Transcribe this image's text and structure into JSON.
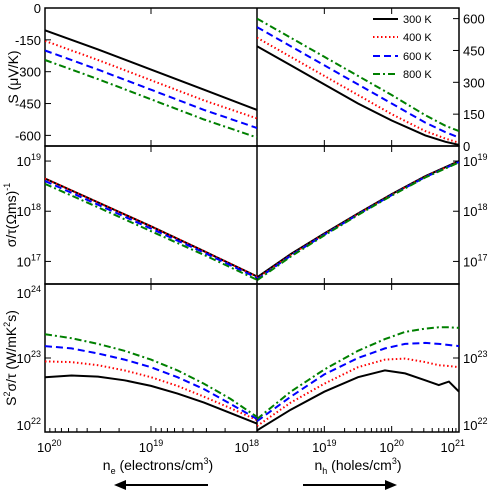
{
  "chart_data": {
    "type": "line",
    "series_styles": [
      {
        "name": "300 K",
        "color": "#000000",
        "dash": "solid"
      },
      {
        "name": "400 K",
        "color": "#ff0000",
        "dash": "dotted"
      },
      {
        "name": "600 K",
        "color": "#0000ff",
        "dash": "dashed"
      },
      {
        "name": "800 K",
        "color": "#008000",
        "dash": "dashdot"
      }
    ],
    "legend": {
      "placement": "top-right of top-right panel",
      "entries": [
        "300 K",
        "400 K",
        "600 K",
        "800 K"
      ]
    },
    "x_axes": {
      "left": {
        "label": "n",
        "label_sub": "e",
        "label_rest": " (electrons/cm",
        "label_sup": "3",
        "label_end": ")",
        "scale": "log",
        "reversed": true,
        "range": [
          "1e20",
          "1e18"
        ],
        "ticks": [
          "10^20",
          "10^19",
          "10^18"
        ]
      },
      "right": {
        "label": "n",
        "label_sub": "h",
        "label_rest": " (holes/cm",
        "label_sup": "3",
        "label_end": ")",
        "scale": "log",
        "range": [
          "1e18",
          "1e21"
        ],
        "ticks": [
          "10^18",
          "10^19",
          "10^20",
          "10^21"
        ]
      }
    },
    "panels": [
      {
        "id": "seebeck",
        "ylabel_left": "S (μV/K)",
        "left_ylim": [
          -650,
          0
        ],
        "left_yticks": [
          "0",
          "-150",
          "-300",
          "-450",
          "-600"
        ],
        "right_ylim": [
          0,
          650
        ],
        "right_yticks": [
          "0",
          "150",
          "300",
          "450",
          "600"
        ],
        "left": {
          "x_exp": [
            20.0,
            19.5,
            19.0,
            18.5,
            18.0
          ],
          "series": [
            {
              "name": "300 K",
              "values": [
                -105,
                -195,
                -290,
                -385,
                -480
              ]
            },
            {
              "name": "400 K",
              "values": [
                -155,
                -245,
                -340,
                -435,
                -520
              ]
            },
            {
              "name": "600 K",
              "values": [
                -200,
                -290,
                -385,
                -480,
                -565
              ]
            },
            {
              "name": "800 K",
              "values": [
                -245,
                -335,
                -430,
                -525,
                -610
              ]
            }
          ]
        },
        "right": {
          "x_exp": [
            18.0,
            18.5,
            19.0,
            19.5,
            20.0,
            20.5,
            20.8,
            21.0
          ],
          "series": [
            {
              "name": "300 K",
              "values": [
                470,
                380,
                290,
                200,
                120,
                50,
                20,
                5
              ]
            },
            {
              "name": "400 K",
              "values": [
                510,
                420,
                330,
                240,
                150,
                70,
                35,
                15
              ]
            },
            {
              "name": "600 K",
              "values": [
                560,
                470,
                380,
                290,
                200,
                110,
                65,
                40
              ]
            },
            {
              "name": "800 K",
              "values": [
                600,
                510,
                420,
                330,
                240,
                145,
                95,
                70
              ]
            }
          ]
        }
      },
      {
        "id": "conductivity",
        "ylabel_left": "σ/τ(Ωms)",
        "ylabel_left_sup": "-1",
        "scale": "log",
        "left_ylim_exp": [
          16.55,
          19.3
        ],
        "left_yticks": [
          {
            "base": "10",
            "exp": "19"
          },
          {
            "base": "10",
            "exp": "18"
          },
          {
            "base": "10",
            "exp": "17"
          }
        ],
        "right_ylim_exp": [
          16.55,
          19.3
        ],
        "right_yticks": [
          {
            "base": "10",
            "exp": "19"
          },
          {
            "base": "10",
            "exp": "18"
          },
          {
            "base": "10",
            "exp": "17"
          }
        ],
        "left": {
          "x_exp": [
            20.0,
            19.5,
            19.0,
            18.5,
            18.0
          ],
          "series": [
            {
              "name": "300 K",
              "values": [
                "4.5e18",
                "1.5e18",
                "5e17",
                "1.6e17",
                "5e16"
              ]
            },
            {
              "name": "400 K",
              "values": [
                "4.5e18",
                "1.5e18",
                "5e17",
                "1.6e17",
                "5e16"
              ]
            },
            {
              "name": "600 K",
              "values": [
                "4e18",
                "1.35e18",
                "4.5e17",
                "1.5e17",
                "4.7e16"
              ]
            },
            {
              "name": "800 K",
              "values": [
                "3.5e18",
                "1.2e18",
                "4e17",
                "1.35e17",
                "4.3e16"
              ]
            }
          ]
        },
        "right": {
          "x_exp": [
            18.0,
            18.5,
            19.0,
            19.5,
            20.0,
            20.5,
            21.0
          ],
          "series": [
            {
              "name": "300 K",
              "values": [
                "4.8e16",
                "1.4e17",
                "3.6e17",
                "9e17",
                "2.2e18",
                "5e18",
                "1e19"
              ]
            },
            {
              "name": "400 K",
              "values": [
                "4.6e16",
                "1.35e17",
                "3.5e17",
                "8.8e17",
                "2.15e18",
                "4.9e18",
                "9.8e18"
              ]
            },
            {
              "name": "600 K",
              "values": [
                "4.4e16",
                "1.3e17",
                "3.4e17",
                "8.6e17",
                "2.1e18",
                "4.8e18",
                "9.6e18"
              ]
            },
            {
              "name": "800 K",
              "values": [
                "4.2e16",
                "1.25e17",
                "3.3e17",
                "8.4e17",
                "2.05e18",
                "4.7e18",
                "9.4e18"
              ]
            }
          ]
        }
      },
      {
        "id": "power_factor",
        "ylabel_left": "S",
        "ylabel_left_sup": "2",
        "ylabel_left_rest": "σ/τ (W/mK",
        "ylabel_left_sup2": "2",
        "ylabel_left_end": "s)",
        "scale": "log",
        "left_ylim_exp": [
          22.0,
          24.0
        ],
        "left_yticks": [
          {
            "base": "10",
            "exp": "24"
          },
          {
            "base": "10",
            "exp": "23"
          },
          {
            "base": "10",
            "exp": "22"
          }
        ],
        "right_ylim_exp": [
          22.0,
          24.0
        ],
        "right_yticks": [
          {
            "base": "10",
            "exp": "23"
          },
          {
            "base": "10",
            "exp": "22"
          }
        ],
        "left": {
          "x_exp": [
            20.0,
            19.75,
            19.5,
            19.25,
            19.0,
            18.75,
            18.5,
            18.25,
            18.0
          ],
          "series": [
            {
              "name": "300 K",
              "values": [
                "5.5e22",
                "5.8e22",
                "5.6e22",
                "5e22",
                "4.2e22",
                "3.3e22",
                "2.5e22",
                "1.8e22",
                "1.3e22"
              ]
            },
            {
              "name": "400 K",
              "values": [
                "9e22",
                "8.8e22",
                "8e22",
                "6.8e22",
                "5.5e22",
                "4.2e22",
                "3e22",
                "2.1e22",
                "1.45e22"
              ]
            },
            {
              "name": "600 K",
              "values": [
                "1.45e23",
                "1.35e23",
                "1.15e23",
                "9.5e22",
                "7.5e22",
                "5.5e22",
                "3.8e22",
                "2.4e22",
                "1.5e22"
              ]
            },
            {
              "name": "800 K",
              "values": [
                "2.1e23",
                "1.85e23",
                "1.55e23",
                "1.25e23",
                "9.5e22",
                "6.8e22",
                "4.5e22",
                "2.8e22",
                "1.6e22"
              ]
            }
          ]
        },
        "right": {
          "x_exp": [
            18.0,
            18.5,
            19.0,
            19.5,
            19.9,
            20.2,
            20.5,
            20.7,
            20.85,
            21.0
          ],
          "series": [
            {
              "name": "300 K",
              "values": [
                "1.05e22",
                "2e22",
                "3.5e22",
                "5.5e22",
                "6.8e22",
                "6.2e22",
                "5e22",
                "4.3e22",
                "4.8e22",
                "3.5e22"
              ]
            },
            {
              "name": "400 K",
              "values": [
                "1.2e22",
                "2.5e22",
                "4.5e22",
                "7.5e22",
                "9.5e22",
                "9.8e22",
                "8.8e22",
                "8e22",
                "7.8e22",
                "7.5e22"
              ]
            },
            {
              "name": "600 K",
              "values": [
                "1.4e22",
                "3e22",
                "6e22",
                "1e23",
                "1.35e23",
                "1.55e23",
                "1.6e23",
                "1.55e23",
                "1.5e23",
                "1.45e23"
              ]
            },
            {
              "name": "800 K",
              "values": [
                "1.5e22",
                "3.5e22",
                "7e22",
                "1.25e23",
                "1.8e23",
                "2.25e23",
                "2.5e23",
                "2.6e23",
                "2.6e23",
                "2.55e23"
              ]
            }
          ]
        }
      }
    ]
  }
}
